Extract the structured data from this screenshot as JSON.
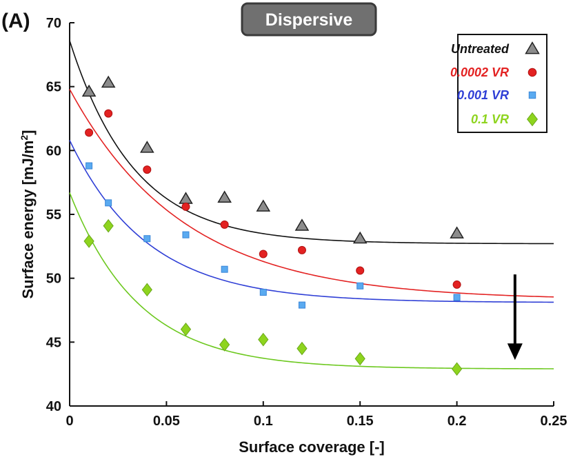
{
  "panel_label": "(A)",
  "chart_data": {
    "type": "scatter",
    "title": "Dispersive",
    "xlabel": "Surface coverage [-]",
    "ylabel_main": "Surface energy [mJ/m",
    "ylabel_sup": "2",
    "ylabel_end": "]",
    "xlim": [
      0,
      0.25
    ],
    "ylim": [
      40,
      70
    ],
    "xticks": [
      0,
      0.05,
      0.1,
      0.15,
      0.2,
      0.25
    ],
    "xtick_labels": [
      "0",
      "0.05",
      "0.1",
      "0.15",
      "0.2",
      "0.25"
    ],
    "yticks": [
      40,
      45,
      50,
      55,
      60,
      65,
      70
    ],
    "ytick_labels": [
      "40",
      "45",
      "50",
      "55",
      "60",
      "65",
      "70"
    ],
    "grid": false,
    "legend_position": "top-right",
    "series": [
      {
        "name": "Untreated",
        "marker": "triangle",
        "color": "#8c8c8c",
        "line_color": "#111111",
        "label_color": "#111111",
        "x": [
          0.01,
          0.02,
          0.04,
          0.06,
          0.08,
          0.1,
          0.12,
          0.15,
          0.2
        ],
        "y": [
          64.6,
          65.3,
          60.2,
          56.2,
          56.3,
          55.6,
          54.1,
          53.1,
          53.5
        ],
        "fit": {
          "y0": 68.6,
          "yinf": 52.7,
          "k": 30
        }
      },
      {
        "name": "0.0002 VR",
        "marker": "circle",
        "color": "#e32222",
        "line_color": "#e32222",
        "label_color": "#e32222",
        "x": [
          0.01,
          0.02,
          0.04,
          0.06,
          0.08,
          0.1,
          0.12,
          0.15,
          0.2
        ],
        "y": [
          61.4,
          62.9,
          58.5,
          55.6,
          54.2,
          51.9,
          52.2,
          50.6,
          49.5
        ],
        "fit": {
          "y0": 64.8,
          "yinf": 48.3,
          "k": 17
        }
      },
      {
        "name": "0.001 VR",
        "marker": "square",
        "color": "#5aaaf0",
        "line_color": "#2f3fd6",
        "label_color": "#2f3fd6",
        "x": [
          0.01,
          0.02,
          0.04,
          0.06,
          0.08,
          0.1,
          0.12,
          0.15,
          0.2
        ],
        "y": [
          58.8,
          55.9,
          53.1,
          53.4,
          50.7,
          48.9,
          47.9,
          49.4,
          48.5
        ],
        "fit": {
          "y0": 60.8,
          "yinf": 48.1,
          "k": 25
        }
      },
      {
        "name": "0.1 VR",
        "marker": "diamond",
        "color": "#8ed41e",
        "line_color": "#6cc81e",
        "label_color": "#8ed41e",
        "x": [
          0.01,
          0.02,
          0.04,
          0.06,
          0.08,
          0.1,
          0.12,
          0.15,
          0.2
        ],
        "y": [
          52.9,
          54.1,
          49.1,
          46.0,
          44.8,
          45.2,
          44.5,
          43.7,
          42.9
        ],
        "fit": {
          "y0": 56.7,
          "yinf": 42.9,
          "k": 28
        }
      }
    ],
    "arrow": {
      "x": 0.23,
      "y_start": 50.3,
      "y_end": 43.6,
      "color": "#000000"
    }
  }
}
